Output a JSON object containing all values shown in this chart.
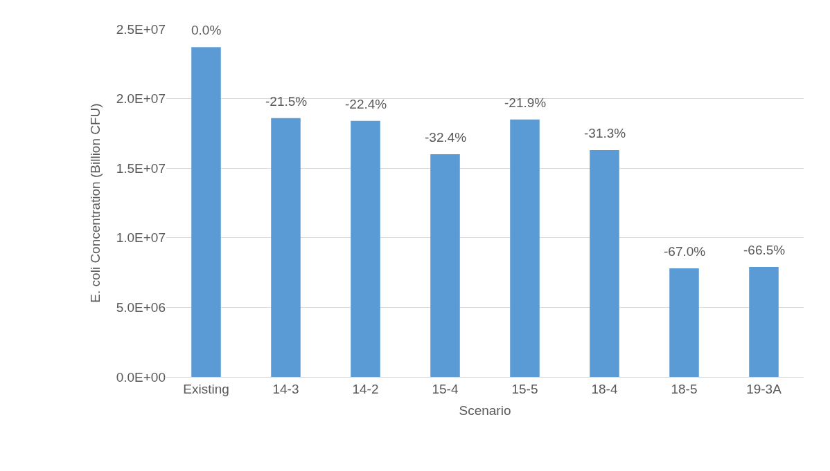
{
  "chart_data": {
    "type": "bar",
    "xlabel": "Scenario",
    "ylabel": "E. coli Concentration (Billion CFU)",
    "categories": [
      "Existing",
      "14-3",
      "14-2",
      "15-4",
      "15-5",
      "18-4",
      "18-5",
      "19-3A"
    ],
    "values": [
      23700000,
      18600000,
      18400000,
      16000000,
      18500000,
      16300000,
      7800000,
      7900000
    ],
    "annotations": [
      {
        "text": "0.0%",
        "x": "Existing",
        "y": 23700000
      },
      {
        "text": "-21.5%",
        "x": "14-3",
        "y": 18600000
      },
      {
        "text": "-22.4%",
        "x": "14-2",
        "y": 18400000
      },
      {
        "text": "-32.4%",
        "x": "15-4",
        "y": 16000000
      },
      {
        "text": "-21.9%",
        "x": "15-5",
        "y": 18500000
      },
      {
        "text": "-31.3%",
        "x": "18-4",
        "y": 16300000
      },
      {
        "text": "-67.0%",
        "x": "18-5",
        "y": 7800000
      },
      {
        "text": "-66.5%",
        "x": "19-3A",
        "y": 7900000
      }
    ],
    "color": "#5b9bd5",
    "ylim": [
      0,
      25000000
    ],
    "yticks": [
      {
        "value": 0,
        "label": "0.0E+00"
      },
      {
        "value": 5000000,
        "label": "5.0E+06"
      },
      {
        "value": 10000000,
        "label": "1.0E+07"
      },
      {
        "value": 15000000,
        "label": "1.5E+07"
      },
      {
        "value": 20000000,
        "label": "2.0E+07"
      },
      {
        "value": 25000000,
        "label": "2.5E+07"
      }
    ],
    "grid": "y"
  }
}
